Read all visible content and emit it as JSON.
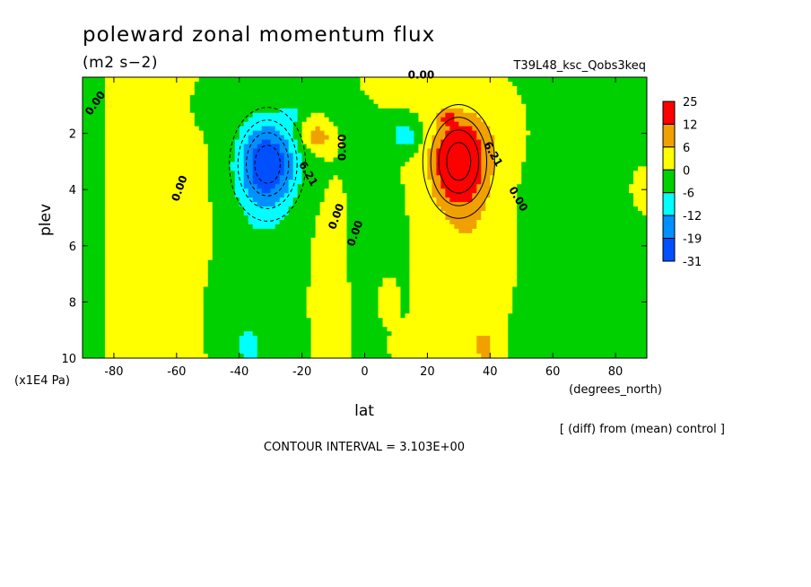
{
  "chart_data": {
    "type": "heatmap",
    "title": "poleward zonal momentum flux",
    "units": "(m2 s−2)",
    "run_label": "T39L48_ksc_Qobs3keq",
    "xlabel": "lat",
    "x_units": "(degrees_north)",
    "ylabel": "plev",
    "y_units": "(x1E4 Pa)",
    "xlim": [
      -90,
      90
    ],
    "ylim": [
      10,
      0
    ],
    "x_ticks": [
      -80,
      -60,
      -40,
      -20,
      0,
      20,
      40,
      60,
      80
    ],
    "x_tick_labels": [
      "-80",
      "-60",
      "-40",
      "-20",
      "0",
      "20",
      "40",
      "60",
      "80"
    ],
    "y_ticks": [
      2,
      4,
      6,
      8,
      10
    ],
    "y_tick_labels": [
      "2",
      "4",
      "6",
      "8",
      "10"
    ],
    "footer": "CONTOUR INTERVAL = 3.103E+00",
    "note": "[ (diff) from (mean) control ]",
    "contour_labels": [
      "0.00",
      "0.00",
      "0.00",
      "0.00",
      "0.00",
      "0.00",
      "0.00",
      "6.21",
      "6.21"
    ],
    "legend": {
      "labels": [
        "25",
        "12",
        "6",
        "0",
        "-6",
        "-12",
        "-19",
        "-31"
      ],
      "colors": [
        "#ff0000",
        "#f0a000",
        "#ffff00",
        "#00d000",
        "#00ffff",
        "#0090ff",
        "#0050ff"
      ]
    },
    "color_levels": [
      -31,
      -19,
      -12,
      -6,
      0,
      6,
      12,
      25
    ],
    "features": [
      {
        "lat": -31,
        "plev": 3.1,
        "value": -24,
        "kind": "minimum"
      },
      {
        "lat": 30,
        "plev": 3.0,
        "value": 20,
        "kind": "maximum"
      },
      {
        "lat": -15,
        "plev": 2.1,
        "value": 8,
        "kind": "maximum"
      },
      {
        "lat": 13,
        "plev": 2.1,
        "value": -8,
        "kind": "minimum"
      },
      {
        "lat": -37,
        "plev": 9.5,
        "value": -8,
        "kind": "minimum"
      },
      {
        "lat": 38,
        "plev": 9.6,
        "value": 8,
        "kind": "maximum"
      }
    ]
  }
}
